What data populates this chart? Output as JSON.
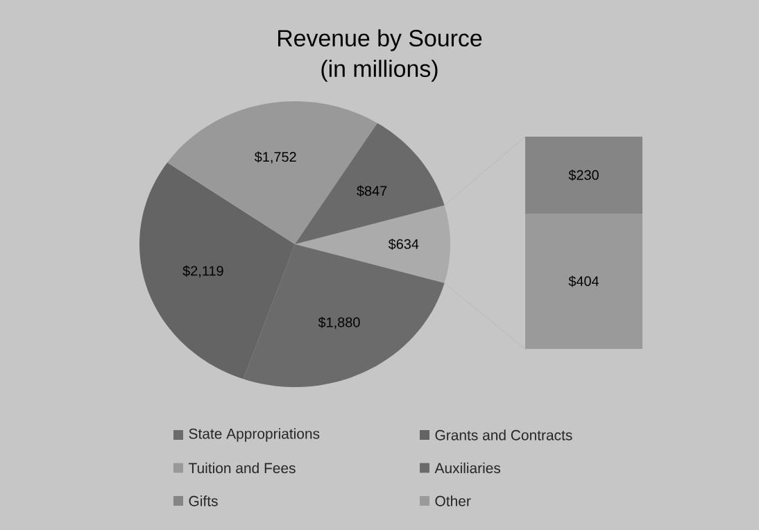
{
  "chart_data": [
    {
      "type": "pie",
      "title": "Revenue by Source",
      "subtitle": "(in millions)",
      "categories": [
        "State Appropriations",
        "Grants and Contracts",
        "Tuition and Fees",
        "Auxiliaries",
        null
      ],
      "values": [
        1880,
        2119,
        1752,
        847,
        634
      ],
      "colors": [
        "#6b6b6b",
        "#646464",
        "#999999",
        "#6a6a6a",
        "#ababab"
      ],
      "value_labels": [
        "$1,880",
        "$2,119",
        "$1,752",
        "$847",
        "$634"
      ],
      "legend": "bottom"
    },
    {
      "type": "bar",
      "stacked": true,
      "categories": [
        null
      ],
      "series": [
        {
          "name": "Other",
          "color": "#9a9a9a",
          "values": [
            404
          ],
          "value_labels": [
            "$404"
          ]
        },
        {
          "name": "Gifts",
          "color": "#858585",
          "values": [
            230
          ],
          "value_labels": [
            "$230"
          ]
        }
      ],
      "legend": "bottom"
    }
  ]
}
